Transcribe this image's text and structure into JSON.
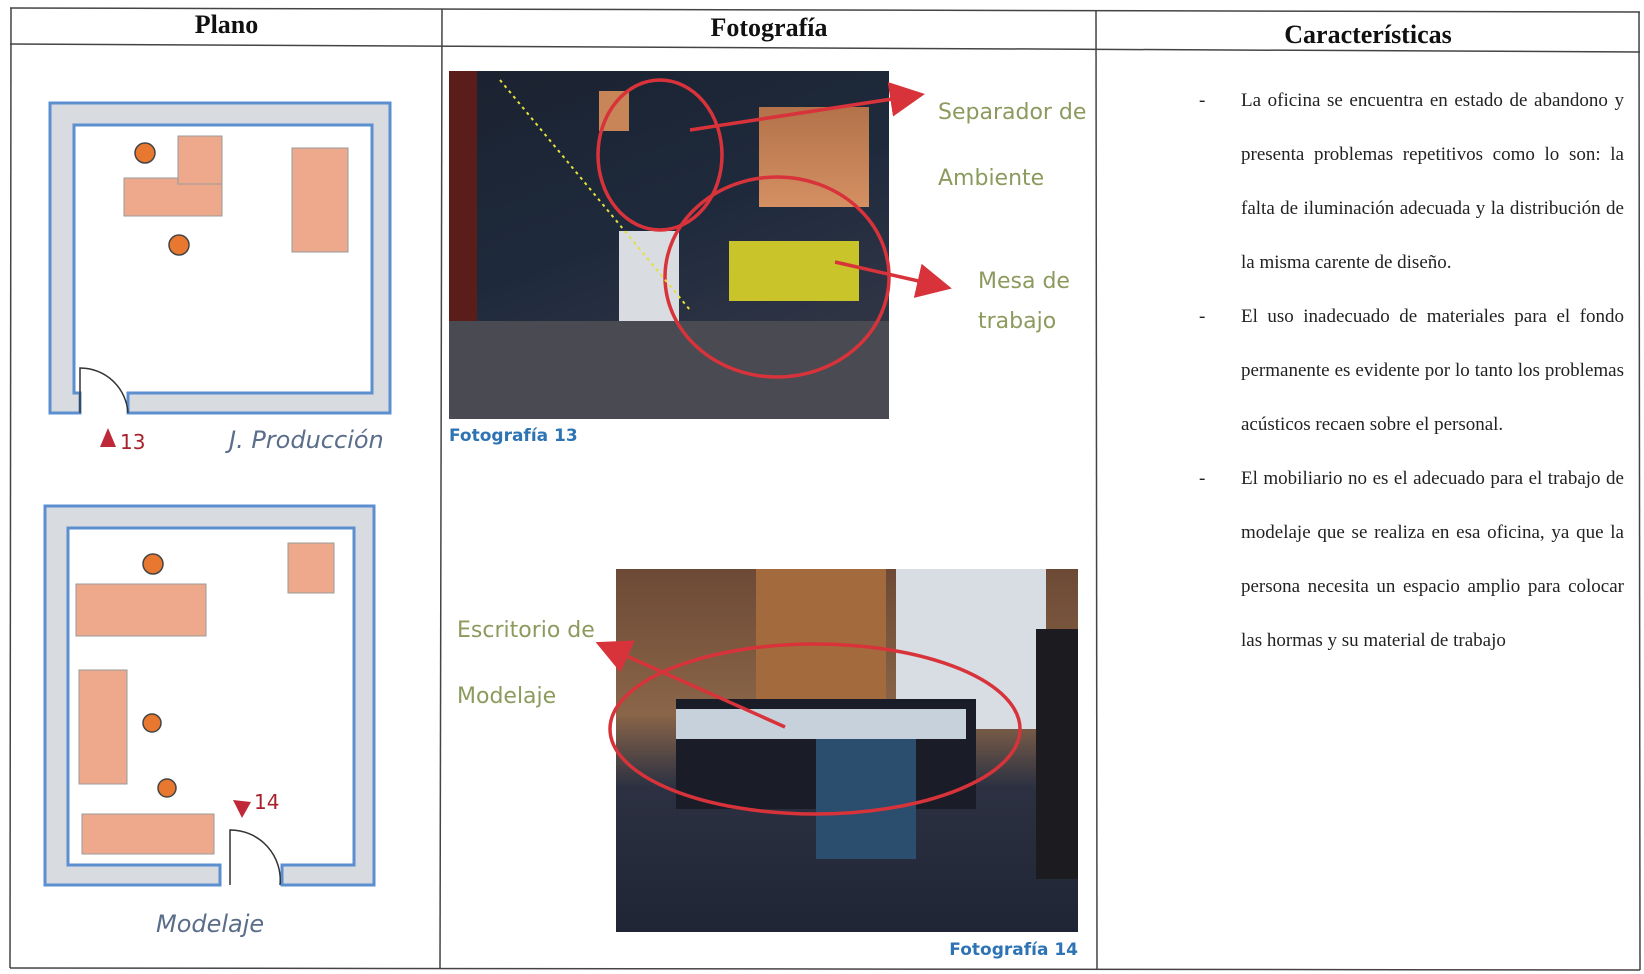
{
  "table": {
    "headers": [
      "Plano",
      "Fotografía",
      "Características"
    ],
    "plans": [
      {
        "marker": "13",
        "name": "J. Producción"
      },
      {
        "marker": "14",
        "name": "Modelaje"
      }
    ],
    "photos": [
      {
        "caption": "Fotografía 13",
        "annotations": [
          [
            "Separador de",
            "Ambiente"
          ],
          [
            "Mesa de",
            "trabajo"
          ]
        ]
      },
      {
        "caption": "Fotografía 14",
        "annotations": [
          [
            "Escritorio de",
            "Modelaje"
          ]
        ]
      }
    ],
    "characteristics": [
      {
        "bullet": "-",
        "text": "La oficina se encuentra en estado de abandono y presenta problemas repetitivos como lo son: la falta de iluminación adecuada y la distribución de la misma carente de diseño."
      },
      {
        "bullet": "-",
        "text": "El uso inadecuado de materiales para el fondo permanente es evidente por lo tanto los problemas acústicos recaen sobre el personal."
      },
      {
        "bullet": "-",
        "text": "El mobiliario no es el adecuado para el trabajo de modelaje que se realiza en esa oficina, ya que la persona necesita un espacio amplio para colocar las hormas y su material de trabajo"
      }
    ]
  }
}
